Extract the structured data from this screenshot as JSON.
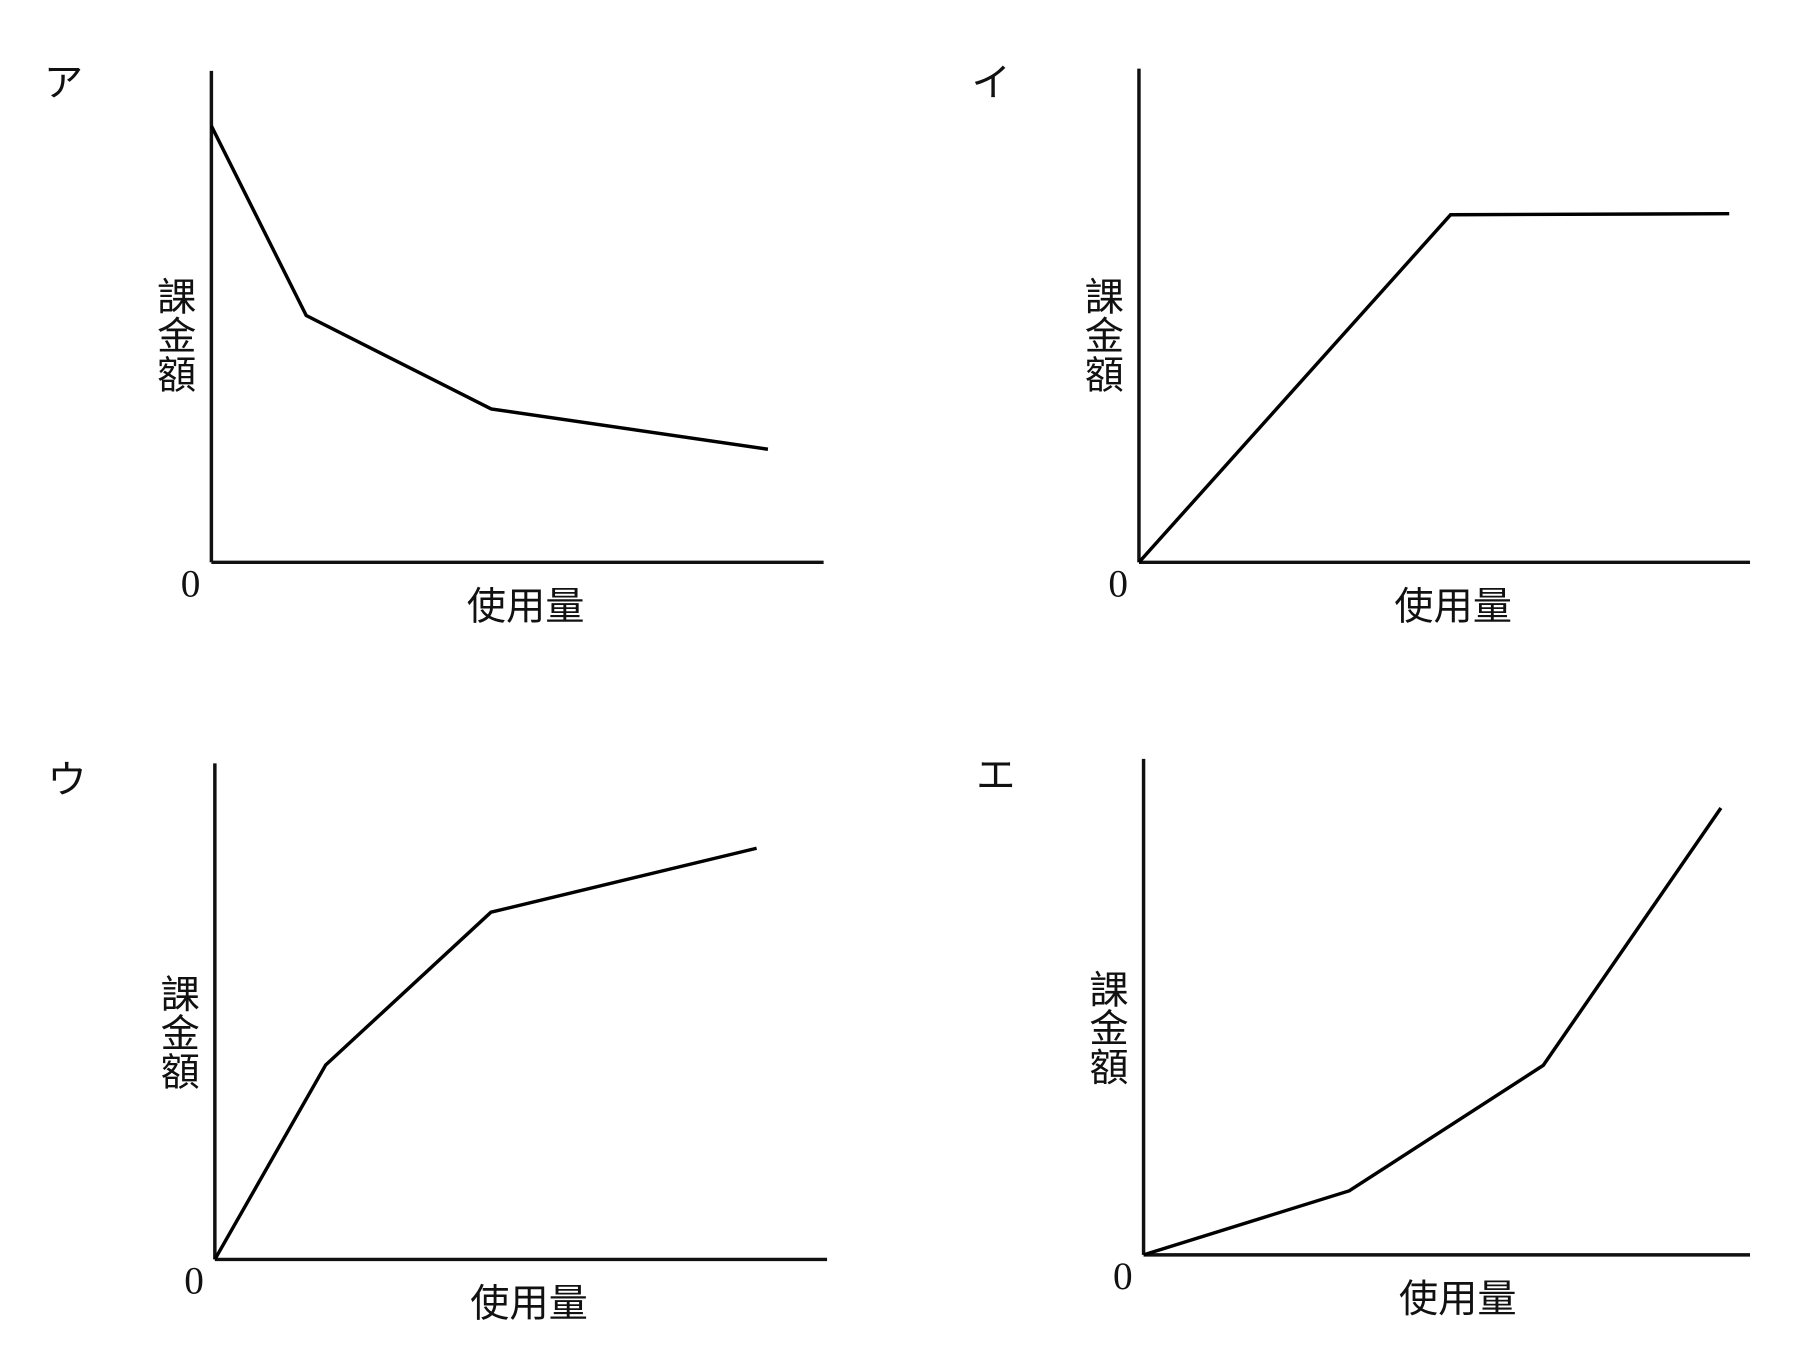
{
  "chart_data": [
    {
      "type": "line",
      "title": "ア",
      "y_label": "課金額",
      "x_label": "使用量",
      "x": [
        0,
        15.5,
        45.7,
        90.9
      ],
      "values": [
        88.8,
        50.2,
        31.2,
        23
      ],
      "xlim": [
        0,
        100
      ],
      "ylim": [
        0,
        100
      ],
      "yticks": [
        0
      ],
      "color": "#000000"
    },
    {
      "type": "line",
      "title": "イ",
      "y_label": "課金額",
      "x_label": "使用量",
      "x": [
        0,
        51,
        96.6
      ],
      "values": [
        0,
        70.4,
        70.6
      ],
      "xlim": [
        0,
        100
      ],
      "ylim": [
        0,
        100
      ],
      "yticks": [
        0
      ],
      "color": "#000000"
    },
    {
      "type": "line",
      "title": "ウ",
      "y_label": "課金額",
      "x_label": "使用量",
      "x": [
        0,
        18.1,
        45.1,
        88.5
      ],
      "values": [
        0,
        39.2,
        70,
        82.9
      ],
      "xlim": [
        0,
        100
      ],
      "ylim": [
        0,
        100
      ],
      "yticks": [
        0
      ],
      "color": "#000000"
    },
    {
      "type": "line",
      "title": "エ",
      "y_label": "課金額",
      "x_label": "使用量",
      "x": [
        0,
        33.9,
        65.9,
        95.2
      ],
      "values": [
        0,
        12.9,
        38.2,
        90.1
      ],
      "xlim": [
        0,
        100
      ],
      "ylim": [
        0,
        100
      ],
      "yticks": [
        0
      ],
      "color": "#000000"
    }
  ]
}
